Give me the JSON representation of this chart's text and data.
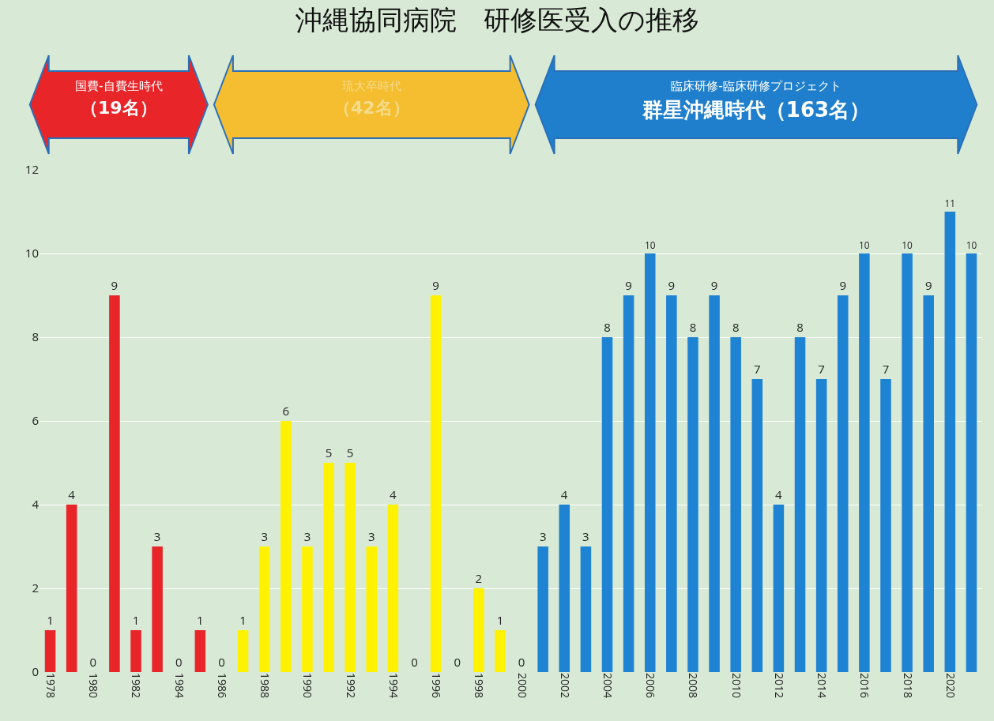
{
  "chart_data": {
    "type": "bar",
    "title": "沖縄協同病院　研修医受入の推移",
    "categories": [
      "1978",
      null,
      "1980",
      null,
      "1982",
      null,
      "1984",
      null,
      "1986",
      null,
      "1988",
      null,
      "1990",
      null,
      "1992",
      null,
      "1994",
      null,
      "1996",
      null,
      "1998",
      null,
      "2000",
      null,
      "2002",
      null,
      "2004",
      null,
      "2006",
      null,
      "2008",
      null,
      "2010",
      null,
      "2012",
      null,
      "2014",
      null,
      "2016",
      null,
      "2018",
      null,
      "2020",
      null
    ],
    "values": [
      1,
      4,
      0,
      9,
      1,
      3,
      0,
      1,
      0,
      1,
      3,
      6,
      3,
      5,
      5,
      3,
      4,
      0,
      9,
      0,
      2,
      1,
      0,
      3,
      4,
      3,
      8,
      9,
      10,
      9,
      8,
      9,
      8,
      7,
      4,
      8,
      7,
      9,
      10,
      7,
      10,
      9,
      11,
      10
    ],
    "colors": [
      "#e8262a",
      "#e8262a",
      "#e8262a",
      "#e8262a",
      "#e8262a",
      "#e8262a",
      "#e8262a",
      "#e8262a",
      "#fff200",
      "#fff200",
      "#fff200",
      "#fff200",
      "#fff200",
      "#fff200",
      "#fff200",
      "#fff200",
      "#fff200",
      "#fff200",
      "#fff200",
      "#fff200",
      "#fff200",
      "#fff200",
      "#fff200",
      "#1f83d4",
      "#1f83d4",
      "#1f83d4",
      "#1f83d4",
      "#1f83d4",
      "#1f83d4",
      "#1f83d4",
      "#1f83d4",
      "#1f83d4",
      "#1f83d4",
      "#1f83d4",
      "#1f83d4",
      "#1f83d4",
      "#1f83d4",
      "#1f83d4",
      "#1f83d4",
      "#1f83d4",
      "#1f83d4",
      "#1f83d4",
      "#1f83d4",
      "#1f83d4"
    ],
    "ylim": [
      0,
      12
    ],
    "yticks": [
      0,
      2,
      4,
      6,
      8,
      10,
      12
    ],
    "grid": "y",
    "data_labels": true,
    "annotations": [
      "国費-自費生時代",
      "（19名）",
      "琉大卒時代",
      "（42名）",
      "臨床研修-臨床研修プロジェクト",
      "群星沖縄時代（163名）"
    ]
  }
}
